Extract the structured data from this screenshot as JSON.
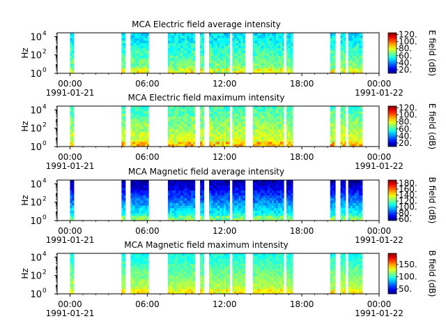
{
  "figure": {
    "background": "#ffffff"
  },
  "chart_data": [
    {
      "type": "heatmap",
      "title": "MCA  Electric field average intensity",
      "ylabel": "Hz",
      "y_scale": "log",
      "y_ticks": [
        {
          "base": "10",
          "exp": "0"
        },
        {
          "base": "10",
          "exp": "2"
        },
        {
          "base": "10",
          "exp": "4"
        }
      ],
      "ylim_exponent": [
        0,
        4.4
      ],
      "x_ticks": [
        "00:00",
        "06:00",
        "12:00",
        "18:00"
      ],
      "x_date_labels": {
        "start": "1991-01-21",
        "end": "1991-01-22"
      },
      "xlim_hours": [
        -1,
        24
      ],
      "data_segments_hours": [
        [
          0.0,
          0.3
        ],
        [
          4.0,
          4.3
        ],
        [
          4.7,
          6.1
        ],
        [
          7.6,
          9.7
        ],
        [
          10.1,
          10.4
        ],
        [
          10.8,
          12.4
        ],
        [
          12.6,
          13.6
        ],
        [
          14.2,
          16.6
        ],
        [
          16.8,
          17.3
        ],
        [
          20.2,
          20.6
        ],
        [
          21.0,
          21.4
        ],
        [
          21.6,
          22.7
        ]
      ],
      "colorbar": {
        "label": "E field (dB)",
        "range": [
          10,
          125
        ],
        "ticks": [
          "20.",
          "40.",
          "60.",
          "80.",
          "100.",
          "120."
        ],
        "tick_values": [
          20,
          40,
          60,
          80,
          100,
          120
        ]
      },
      "intensity_profile": {
        "low_freq_db": 70,
        "high_freq_db": 50
      }
    },
    {
      "type": "heatmap",
      "title": "MCA  Electric field maximum intensity",
      "ylabel": "Hz",
      "y_scale": "log",
      "y_ticks": [
        {
          "base": "10",
          "exp": "0"
        },
        {
          "base": "10",
          "exp": "2"
        },
        {
          "base": "10",
          "exp": "4"
        }
      ],
      "ylim_exponent": [
        0,
        4.4
      ],
      "x_ticks": [
        "00:00",
        "06:00",
        "12:00",
        "18:00"
      ],
      "x_date_labels": {
        "start": "1991-01-21",
        "end": "1991-01-22"
      },
      "xlim_hours": [
        -1,
        24
      ],
      "data_segments_hours": [
        [
          0.0,
          0.3
        ],
        [
          4.0,
          4.3
        ],
        [
          4.7,
          6.1
        ],
        [
          7.6,
          9.7
        ],
        [
          10.1,
          10.4
        ],
        [
          10.8,
          12.4
        ],
        [
          12.6,
          13.6
        ],
        [
          14.2,
          16.6
        ],
        [
          16.8,
          17.3
        ],
        [
          20.2,
          20.6
        ],
        [
          21.0,
          21.4
        ],
        [
          21.6,
          22.7
        ]
      ],
      "colorbar": {
        "label": "E field (dB)",
        "range": [
          10,
          125
        ],
        "ticks": [
          "20.",
          "40.",
          "60.",
          "80.",
          "100.",
          "120."
        ],
        "tick_values": [
          20,
          40,
          60,
          80,
          100,
          120
        ]
      },
      "intensity_profile": {
        "low_freq_db": 80,
        "high_freq_db": 60
      }
    },
    {
      "type": "heatmap",
      "title": "MCA  Magnetic field average intensity",
      "ylabel": "Hz",
      "y_scale": "log",
      "y_ticks": [
        {
          "base": "10",
          "exp": "0"
        },
        {
          "base": "10",
          "exp": "2"
        },
        {
          "base": "10",
          "exp": "4"
        }
      ],
      "ylim_exponent": [
        0,
        4.4
      ],
      "x_ticks": [
        "00:00",
        "06:00",
        "12:00",
        "18:00"
      ],
      "x_date_labels": {
        "start": "1991-01-21",
        "end": "1991-01-22"
      },
      "xlim_hours": [
        -1,
        24
      ],
      "data_segments_hours": [
        [
          0.0,
          0.3
        ],
        [
          4.0,
          4.3
        ],
        [
          4.7,
          6.1
        ],
        [
          7.6,
          9.7
        ],
        [
          10.1,
          10.4
        ],
        [
          10.8,
          12.4
        ],
        [
          12.6,
          13.6
        ],
        [
          14.2,
          16.6
        ],
        [
          16.8,
          17.3
        ],
        [
          20.2,
          20.6
        ],
        [
          21.0,
          21.4
        ],
        [
          21.6,
          22.7
        ]
      ],
      "colorbar": {
        "label": "B field (dB)",
        "range": [
          55,
          190
        ],
        "ticks": [
          "60.",
          "80.",
          "100.",
          "120.",
          "140.",
          "160.",
          "180."
        ],
        "tick_values": [
          60,
          80,
          100,
          120,
          140,
          160,
          180
        ]
      },
      "intensity_profile": {
        "low_freq_db": 115,
        "high_freq_db": 60
      }
    },
    {
      "type": "heatmap",
      "title": "MCA  Magnetic field maximum intensity",
      "ylabel": "Hz",
      "y_scale": "log",
      "y_ticks": [
        {
          "base": "10",
          "exp": "0"
        },
        {
          "base": "10",
          "exp": "2"
        },
        {
          "base": "10",
          "exp": "4"
        }
      ],
      "ylim_exponent": [
        0,
        4.4
      ],
      "x_ticks": [
        "00:00",
        "06:00",
        "12:00",
        "18:00"
      ],
      "x_date_labels": {
        "start": "1991-01-21",
        "end": "1991-01-22"
      },
      "xlim_hours": [
        -1,
        24
      ],
      "data_segments_hours": [
        [
          0.0,
          0.3
        ],
        [
          4.0,
          4.3
        ],
        [
          4.7,
          6.1
        ],
        [
          7.6,
          9.7
        ],
        [
          10.1,
          10.4
        ],
        [
          10.8,
          12.4
        ],
        [
          12.6,
          13.6
        ],
        [
          14.2,
          16.6
        ],
        [
          16.8,
          17.3
        ],
        [
          20.2,
          20.6
        ],
        [
          21.0,
          21.4
        ],
        [
          21.6,
          22.7
        ]
      ],
      "colorbar": {
        "label": "B field (dB)",
        "range": [
          30,
          195
        ],
        "ticks": [
          "50.",
          "100.",
          "150."
        ],
        "tick_values": [
          50,
          100,
          150
        ]
      },
      "intensity_profile": {
        "low_freq_db": 125,
        "high_freq_db": 95
      }
    }
  ]
}
